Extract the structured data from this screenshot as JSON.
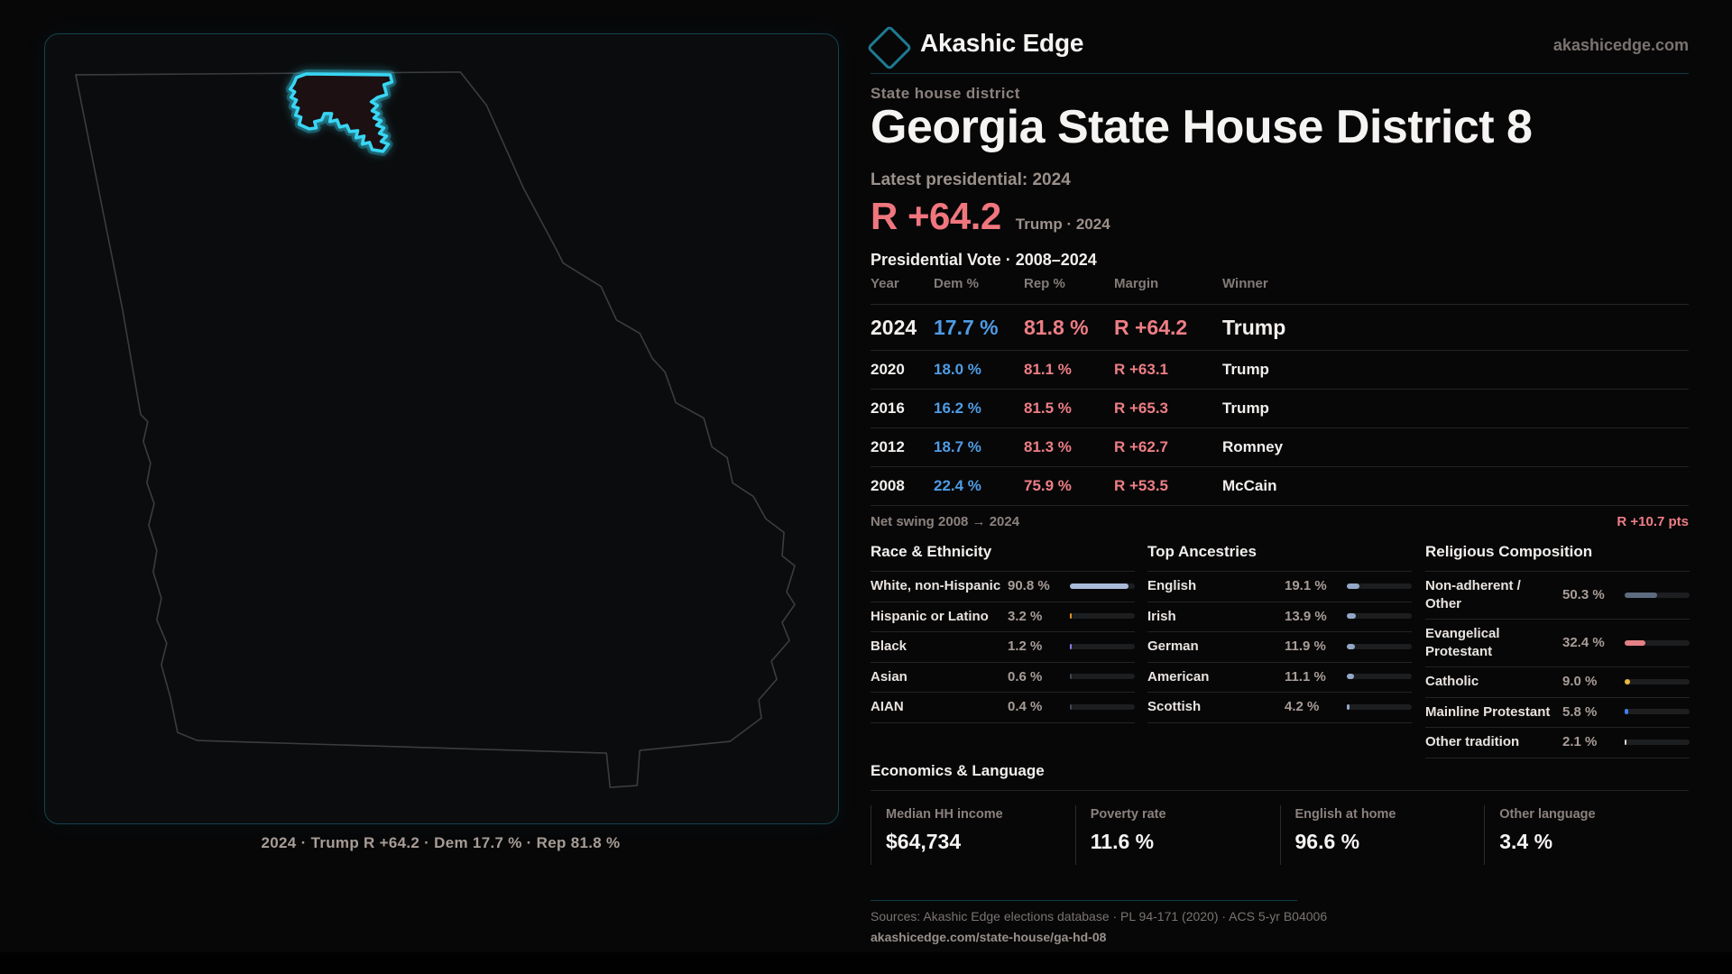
{
  "brand": {
    "name": "Akashic Edge",
    "domain": "akashicedge.com",
    "logo_icon": "diamond-icon"
  },
  "header": {
    "kicker": "State house district",
    "title": "Georgia State House District 8",
    "latest_label": "Latest presidential: 2024",
    "headline_margin": "R +64.2",
    "headline_detail": "Trump · 2024"
  },
  "table": {
    "title": "Presidential Vote · 2008–2024",
    "columns": [
      "Year",
      "Dem %",
      "Rep %",
      "Margin",
      "Winner"
    ],
    "rows": [
      {
        "year": "2024",
        "dem": "17.7 %",
        "rep": "81.8 %",
        "margin": "R +64.2",
        "winner": "Trump",
        "featured": true
      },
      {
        "year": "2020",
        "dem": "18.0 %",
        "rep": "81.1 %",
        "margin": "R +63.1",
        "winner": "Trump"
      },
      {
        "year": "2016",
        "dem": "16.2 %",
        "rep": "81.5 %",
        "margin": "R +65.3",
        "winner": "Trump"
      },
      {
        "year": "2012",
        "dem": "18.7 %",
        "rep": "81.3 %",
        "margin": "R +62.7",
        "winner": "Romney"
      },
      {
        "year": "2008",
        "dem": "22.4 %",
        "rep": "75.9 %",
        "margin": "R +53.5",
        "winner": "McCain"
      }
    ]
  },
  "net_swing": {
    "label": "Net swing 2008 → 2024",
    "value": "R +10.7 pts"
  },
  "demographics": [
    {
      "title": "Race & Ethnicity",
      "rows": [
        {
          "label": "White, non-Hispanic",
          "value": "90.8 %",
          "pct": 90.8,
          "color": "#a9bbd8"
        },
        {
          "label": "Hispanic or Latino",
          "value": "3.2 %",
          "pct": 3.2,
          "color": "#e0921c"
        },
        {
          "label": "Black",
          "value": "1.2 %",
          "pct": 1.2,
          "color": "#8a7cf0"
        },
        {
          "label": "Asian",
          "value": "0.6 %",
          "pct": 0.6,
          "color": "#3f4750"
        },
        {
          "label": "AIAN",
          "value": "0.4 %",
          "pct": 0.4,
          "color": "#3f4750"
        }
      ]
    },
    {
      "title": "Top Ancestries",
      "rows": [
        {
          "label": "English",
          "value": "19.1 %",
          "pct": 19.1,
          "color": "#93a7c6"
        },
        {
          "label": "Irish",
          "value": "13.9 %",
          "pct": 13.9,
          "color": "#93a7c6"
        },
        {
          "label": "German",
          "value": "11.9 %",
          "pct": 11.9,
          "color": "#93a7c6"
        },
        {
          "label": "American",
          "value": "11.1 %",
          "pct": 11.1,
          "color": "#93a7c6"
        },
        {
          "label": "Scottish",
          "value": "4.2 %",
          "pct": 4.2,
          "color": "#93a7c6"
        }
      ]
    },
    {
      "title": "Religious Composition",
      "rows": [
        {
          "label": "Non-adherent / Other",
          "value": "50.3 %",
          "pct": 50.3,
          "color": "#5c6b7f"
        },
        {
          "label": "Evangelical Protestant",
          "value": "32.4 %",
          "pct": 32.4,
          "color": "#e38186"
        },
        {
          "label": "Catholic",
          "value": "9.0 %",
          "pct": 9.0,
          "color": "#e6b93e"
        },
        {
          "label": "Mainline Protestant",
          "value": "5.8 %",
          "pct": 5.8,
          "color": "#3f80e8"
        },
        {
          "label": "Other tradition",
          "value": "2.1 %",
          "pct": 2.1,
          "color": "#d9d6d4"
        }
      ]
    }
  ],
  "economics": {
    "title": "Economics & Language",
    "stats": [
      {
        "label": "Median HH income",
        "value": "$64,734"
      },
      {
        "label": "Poverty rate",
        "value": "11.6 %"
      },
      {
        "label": "English at home",
        "value": "96.6 %"
      },
      {
        "label": "Other language",
        "value": "3.4 %"
      }
    ]
  },
  "footer": {
    "sources": "Sources: Akashic Edge elections database · PL 94-171 (2020) · ACS 5-yr B04006",
    "permalink": "akashicedge.com/state-house/ga-hd-08"
  },
  "map": {
    "caption": "2024 · Trump R +64.2 · Dem 17.7 % · Rep 81.8 %"
  },
  "colors": {
    "accent": "#38d6f3",
    "rep": "#ee7e85",
    "dem": "#4f9ce4",
    "teal_divider": "#113c48"
  }
}
